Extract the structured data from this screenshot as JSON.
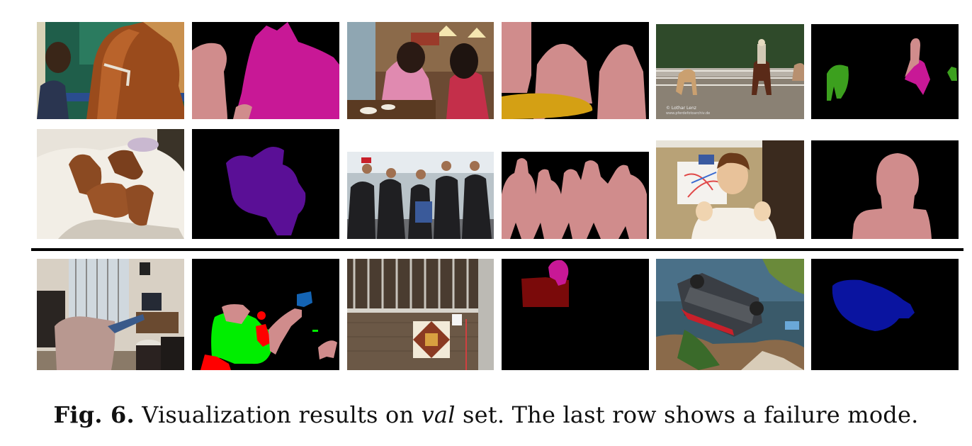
{
  "figure": {
    "label": "Fig. 6.",
    "caption_before": " Visualization results on ",
    "caption_italic": "val",
    "caption_after": " set. The last row shows a failure mode."
  },
  "watermark": {
    "line1": "©  Lothar Lenz",
    "line2": "www.pferdefotoarchiv.de"
  },
  "colors": {
    "person": "#d08c8c",
    "horse": "#c81896",
    "dog": "#5a0f96",
    "table": "#d4a014",
    "cow": "#3ca01e",
    "chair": "#00ee00",
    "sofa": "#ff0000",
    "bottle": "#7a0a0a",
    "tv": "#1464b4",
    "car": "#0a14a0",
    "background": "#000000"
  }
}
